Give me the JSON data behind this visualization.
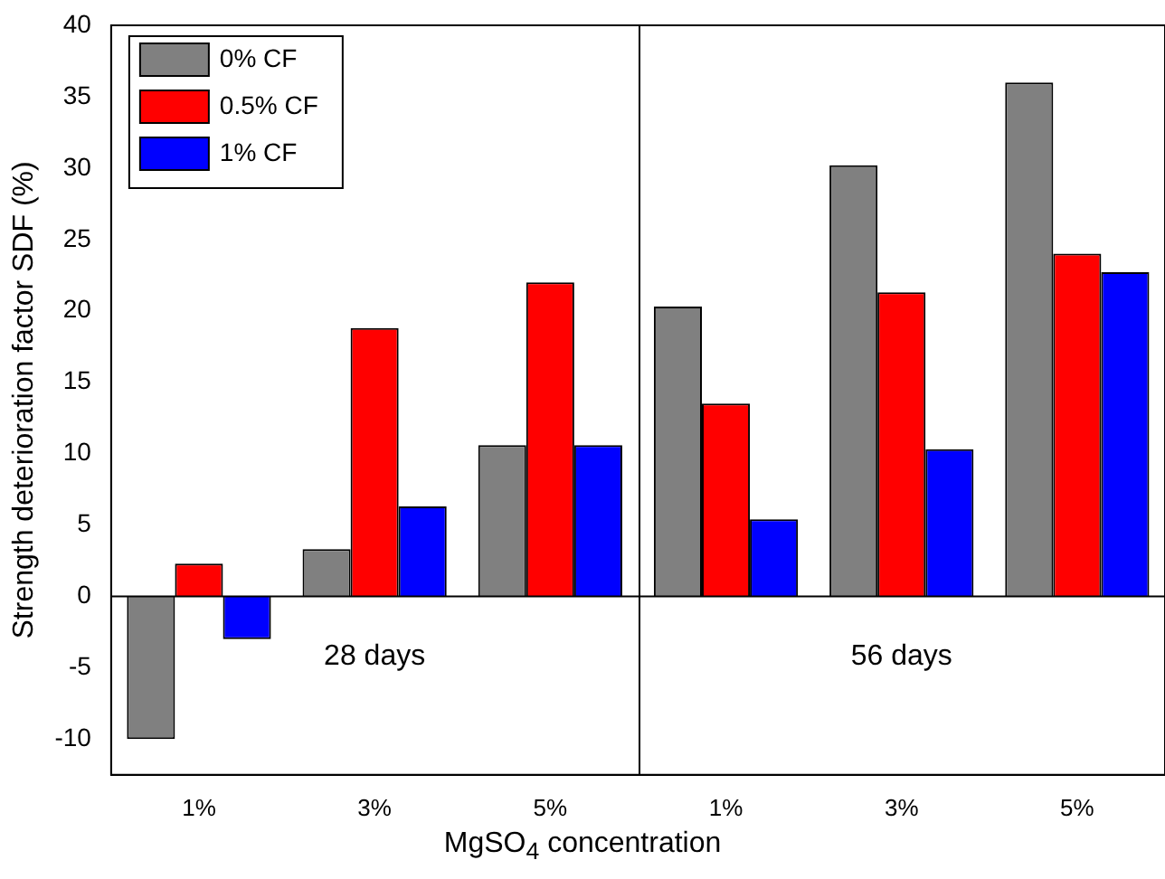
{
  "chart_data": {
    "type": "bar",
    "ylabel": "Strength deterioration factor SDF (%)",
    "xlabel": "MgSO$_{4}$ concentration",
    "categories": [
      "1%",
      "3%",
      "5%",
      "1%",
      "3%",
      "5%"
    ],
    "series": [
      {
        "name": "0% CF",
        "color": "#808080",
        "values": [
          -10,
          3.3,
          10.6,
          20.3,
          30.2,
          36.0
        ]
      },
      {
        "name": "0.5% CF",
        "color": "#ff0000",
        "values": [
          2.3,
          18.8,
          22.0,
          13.5,
          21.3,
          24.0
        ]
      },
      {
        "name": "1% CF",
        "color": "#0000ff",
        "values": [
          -3,
          6.3,
          10.6,
          5.4,
          10.3,
          22.7
        ]
      }
    ],
    "ylim": [
      -12.5,
      40
    ],
    "yticks": [
      -10,
      -5,
      0,
      5,
      10,
      15,
      20,
      25,
      30,
      35,
      40
    ],
    "annotations": [
      "28 days",
      "56 days"
    ],
    "ref_lines": [
      {
        "axis": "y",
        "value": 0,
        "color": "#000000"
      }
    ],
    "grid": false,
    "legend": "top left"
  }
}
